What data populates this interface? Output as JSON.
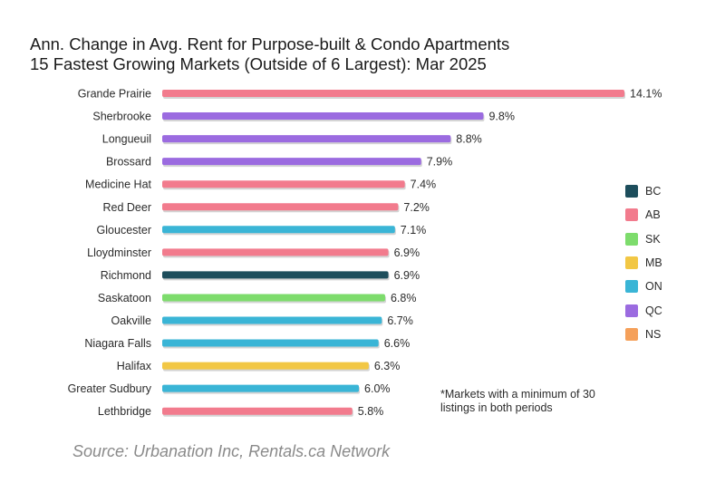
{
  "title": {
    "line1": "Ann. Change in Avg. Rent for Purpose-built & Condo Apartments",
    "line2": "15 Fastest Growing Markets (Outside of 6 Largest): Mar 2025"
  },
  "note": "*Markets with a minimum of 30 listings in both periods",
  "source": "Source: Urbanation Inc, Rentals.ca Network",
  "legend": [
    {
      "label": "BC",
      "color": "#1d4e5c"
    },
    {
      "label": "AB",
      "color": "#f27b8d"
    },
    {
      "label": "SK",
      "color": "#7ddc6c"
    },
    {
      "label": "MB",
      "color": "#f2c744"
    },
    {
      "label": "ON",
      "color": "#3ab5d6"
    },
    {
      "label": "QC",
      "color": "#9b6be0"
    },
    {
      "label": "NS",
      "color": "#f5a05a"
    }
  ],
  "chart_data": {
    "type": "bar",
    "orientation": "horizontal",
    "title": "Ann. Change in Avg. Rent for Purpose-built & Condo Apartments 15 Fastest Growing Markets (Outside of 6 Largest): Mar 2025",
    "xlabel": "",
    "ylabel": "",
    "xlim": [
      0,
      14.1
    ],
    "value_suffix": "%",
    "categories": [
      "Grande Prairie",
      "Sherbrooke",
      "Longueuil",
      "Brossard",
      "Medicine Hat",
      "Red Deer",
      "Gloucester",
      "Lloydminster",
      "Richmond",
      "Saskatoon",
      "Oakville",
      "Niagara Falls",
      "Halifax",
      "Greater Sudbury",
      "Lethbridge"
    ],
    "values": [
      14.1,
      9.8,
      8.8,
      7.9,
      7.4,
      7.2,
      7.1,
      6.9,
      6.9,
      6.8,
      6.7,
      6.6,
      6.3,
      6.0,
      5.8
    ],
    "labels": [
      "14.1%",
      "9.8%",
      "8.8%",
      "7.9%",
      "7.4%",
      "7.2%",
      "7.1%",
      "6.9%",
      "6.9%",
      "6.8%",
      "6.7%",
      "6.6%",
      "6.3%",
      "6.0%",
      "5.8%"
    ],
    "provinces": [
      "AB",
      "QC",
      "QC",
      "QC",
      "AB",
      "AB",
      "ON",
      "AB",
      "BC",
      "SK",
      "ON",
      "ON",
      "MB",
      "ON",
      "AB"
    ]
  }
}
